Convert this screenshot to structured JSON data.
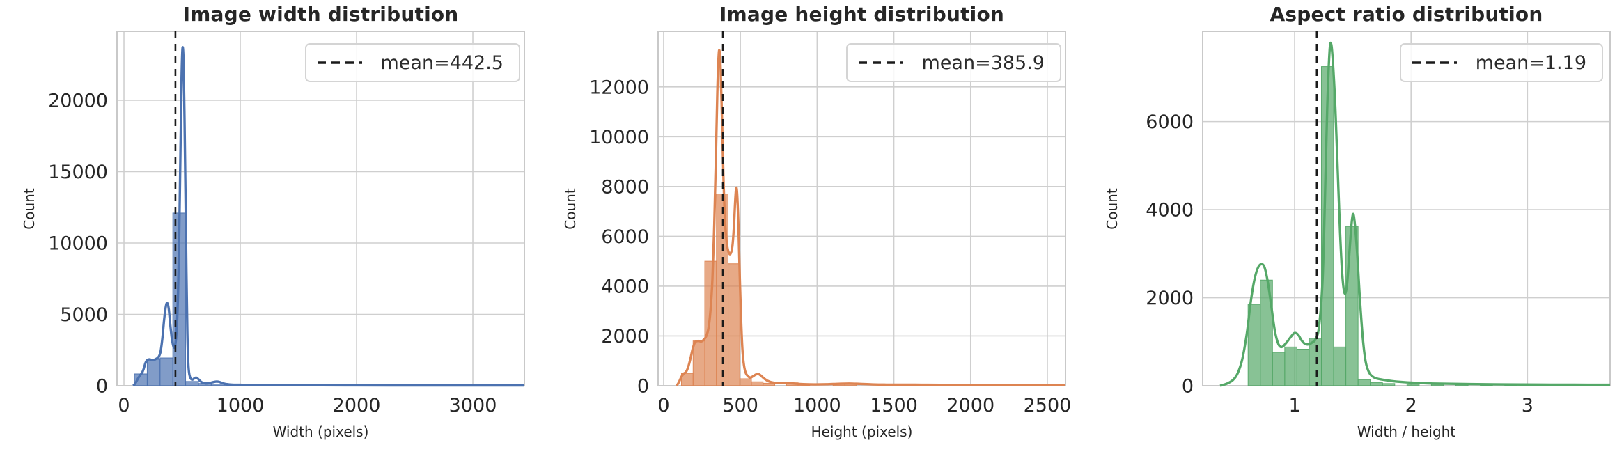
{
  "figure": {
    "background": "#ffffff",
    "grid_color": "#cfcfcf",
    "spine_color": "#c9c9c9",
    "mean_line_color": "#1a1a1a",
    "text_color": "#262626"
  },
  "chart_data": [
    {
      "type": "histogram+kde",
      "title": "Image width distribution",
      "xlabel": "Width (pixels)",
      "ylabel": "Count",
      "legend_label": "mean=442.5",
      "legend_position": "upper right",
      "mean": 442.5,
      "color": "#4C72B0",
      "grid": true,
      "xlim": [
        -60,
        3443
      ],
      "ylim": [
        0,
        24830
      ],
      "x_ticks": [
        0,
        1000,
        2000,
        3000
      ],
      "y_ticks": [
        0,
        5000,
        10000,
        15000,
        20000
      ],
      "bars": [
        [
          90,
          200,
          830
        ],
        [
          200,
          310,
          1850
        ],
        [
          310,
          420,
          1950
        ],
        [
          420,
          530,
          12100
        ],
        [
          530,
          640,
          300
        ],
        [
          640,
          750,
          160
        ],
        [
          750,
          860,
          120
        ],
        [
          860,
          970,
          80
        ],
        [
          970,
          1080,
          90
        ],
        [
          1080,
          1190,
          60
        ],
        [
          1300,
          1410,
          50
        ],
        [
          1520,
          1630,
          40
        ],
        [
          1740,
          1850,
          35
        ],
        [
          1960,
          2070,
          30
        ],
        [
          2180,
          2290,
          28
        ],
        [
          2400,
          2510,
          26
        ],
        [
          2620,
          2730,
          25
        ],
        [
          2840,
          2950,
          24
        ],
        [
          3060,
          3170,
          24
        ],
        [
          3280,
          3390,
          26
        ]
      ],
      "kde": [
        [
          80,
          0
        ],
        [
          100,
          200
        ],
        [
          120,
          500
        ],
        [
          140,
          750
        ],
        [
          155,
          900
        ],
        [
          170,
          1200
        ],
        [
          185,
          1600
        ],
        [
          200,
          1800
        ],
        [
          220,
          1850
        ],
        [
          240,
          1800
        ],
        [
          260,
          1820
        ],
        [
          280,
          1900
        ],
        [
          300,
          2050
        ],
        [
          315,
          2400
        ],
        [
          330,
          3300
        ],
        [
          345,
          4600
        ],
        [
          360,
          5550
        ],
        [
          372,
          5800
        ],
        [
          385,
          5400
        ],
        [
          398,
          4300
        ],
        [
          412,
          3300
        ],
        [
          428,
          2700
        ],
        [
          442,
          2900
        ],
        [
          455,
          4200
        ],
        [
          465,
          6500
        ],
        [
          475,
          10500
        ],
        [
          485,
          16000
        ],
        [
          494,
          21000
        ],
        [
          501,
          23300
        ],
        [
          507,
          23650
        ],
        [
          513,
          22500
        ],
        [
          521,
          18500
        ],
        [
          529,
          13500
        ],
        [
          537,
          8000
        ],
        [
          545,
          3800
        ],
        [
          553,
          1600
        ],
        [
          562,
          800
        ],
        [
          575,
          500
        ],
        [
          590,
          430
        ],
        [
          605,
          520
        ],
        [
          620,
          570
        ],
        [
          635,
          500
        ],
        [
          655,
          330
        ],
        [
          675,
          220
        ],
        [
          700,
          160
        ],
        [
          730,
          180
        ],
        [
          760,
          240
        ],
        [
          790,
          290
        ],
        [
          815,
          280
        ],
        [
          840,
          210
        ],
        [
          870,
          130
        ],
        [
          910,
          90
        ],
        [
          960,
          70
        ],
        [
          1020,
          65
        ],
        [
          1100,
          55
        ],
        [
          1250,
          45
        ],
        [
          1450,
          38
        ],
        [
          1700,
          32
        ],
        [
          2000,
          28
        ],
        [
          2300,
          25
        ],
        [
          2600,
          23
        ],
        [
          2900,
          22
        ],
        [
          3200,
          22
        ],
        [
          3443,
          20
        ]
      ]
    },
    {
      "type": "histogram+kde",
      "title": "Image height distribution",
      "xlabel": "Height (pixels)",
      "ylabel": "Count",
      "legend_label": "mean=385.9",
      "legend_position": "upper right",
      "mean": 385.9,
      "color": "#DD8452",
      "grid": true,
      "xlim": [
        -36,
        2618
      ],
      "ylim": [
        0,
        14230
      ],
      "x_ticks": [
        0,
        500,
        1000,
        1500,
        2000,
        2500
      ],
      "y_ticks": [
        0,
        2000,
        4000,
        6000,
        8000,
        10000,
        12000
      ],
      "bars": [
        [
          116,
          192,
          500
        ],
        [
          192,
          268,
          1800
        ],
        [
          268,
          344,
          5000
        ],
        [
          344,
          420,
          7700
        ],
        [
          420,
          496,
          4900
        ],
        [
          496,
          572,
          280
        ],
        [
          572,
          648,
          160
        ],
        [
          648,
          724,
          100
        ],
        [
          800,
          876,
          120
        ],
        [
          876,
          952,
          70
        ],
        [
          1104,
          1180,
          80
        ],
        [
          1180,
          1256,
          90
        ],
        [
          1408,
          1484,
          50
        ],
        [
          1560,
          1636,
          60
        ],
        [
          1864,
          1940,
          40
        ],
        [
          2168,
          2244,
          30
        ],
        [
          2472,
          2548,
          25
        ]
      ],
      "kde": [
        [
          85,
          0
        ],
        [
          100,
          150
        ],
        [
          115,
          350
        ],
        [
          130,
          480
        ],
        [
          145,
          550
        ],
        [
          160,
          750
        ],
        [
          175,
          1100
        ],
        [
          190,
          1500
        ],
        [
          205,
          1750
        ],
        [
          225,
          1800
        ],
        [
          245,
          1780
        ],
        [
          262,
          1850
        ],
        [
          278,
          2000
        ],
        [
          292,
          2300
        ],
        [
          305,
          3000
        ],
        [
          318,
          4300
        ],
        [
          330,
          6500
        ],
        [
          340,
          9000
        ],
        [
          350,
          11800
        ],
        [
          358,
          13200
        ],
        [
          364,
          13450
        ],
        [
          371,
          12800
        ],
        [
          380,
          10800
        ],
        [
          390,
          8300
        ],
        [
          400,
          6600
        ],
        [
          412,
          5700
        ],
        [
          424,
          5350
        ],
        [
          436,
          5300
        ],
        [
          448,
          5600
        ],
        [
          458,
          6400
        ],
        [
          466,
          7400
        ],
        [
          473,
          7950
        ],
        [
          480,
          7600
        ],
        [
          488,
          6300
        ],
        [
          496,
          4400
        ],
        [
          505,
          2600
        ],
        [
          514,
          1400
        ],
        [
          524,
          800
        ],
        [
          536,
          500
        ],
        [
          550,
          380
        ],
        [
          565,
          330
        ],
        [
          582,
          380
        ],
        [
          600,
          450
        ],
        [
          618,
          470
        ],
        [
          635,
          400
        ],
        [
          655,
          290
        ],
        [
          680,
          190
        ],
        [
          710,
          130
        ],
        [
          745,
          110
        ],
        [
          780,
          120
        ],
        [
          815,
          110
        ],
        [
          855,
          85
        ],
        [
          910,
          65
        ],
        [
          980,
          55
        ],
        [
          1060,
          60
        ],
        [
          1140,
          80
        ],
        [
          1210,
          90
        ],
        [
          1280,
          75
        ],
        [
          1360,
          55
        ],
        [
          1450,
          45
        ],
        [
          1560,
          45
        ],
        [
          1680,
          40
        ],
        [
          1800,
          35
        ],
        [
          1950,
          30
        ],
        [
          2100,
          27
        ],
        [
          2300,
          24
        ],
        [
          2500,
          22
        ],
        [
          2618,
          21
        ]
      ]
    },
    {
      "type": "histogram+kde",
      "title": "Aspect ratio distribution",
      "xlabel": "Width / height",
      "ylabel": "Count",
      "legend_label": "mean=1.19",
      "legend_position": "upper right",
      "mean": 1.19,
      "color": "#55A868",
      "grid": true,
      "xlim": [
        0.21,
        3.71
      ],
      "ylim": [
        0,
        8050
      ],
      "x_ticks": [
        1,
        2,
        3
      ],
      "y_ticks": [
        0,
        2000,
        4000,
        6000
      ],
      "bars": [
        [
          0.6,
          0.705,
          1850
        ],
        [
          0.705,
          0.81,
          2400
        ],
        [
          0.81,
          0.915,
          760
        ],
        [
          0.915,
          1.02,
          880
        ],
        [
          1.02,
          1.125,
          830
        ],
        [
          1.125,
          1.23,
          1080
        ],
        [
          1.23,
          1.335,
          7250
        ],
        [
          1.335,
          1.44,
          880
        ],
        [
          1.44,
          1.545,
          3620
        ],
        [
          1.545,
          1.65,
          140
        ],
        [
          1.65,
          1.755,
          70
        ],
        [
          1.755,
          1.86,
          50
        ],
        [
          1.965,
          2.07,
          35
        ],
        [
          2.175,
          2.28,
          28
        ],
        [
          2.385,
          2.49,
          25
        ],
        [
          2.595,
          2.7,
          22
        ],
        [
          2.805,
          2.91,
          20
        ],
        [
          3.015,
          3.12,
          20
        ],
        [
          3.225,
          3.33,
          20
        ],
        [
          3.435,
          3.54,
          20
        ],
        [
          3.54,
          3.645,
          22
        ]
      ],
      "kde": [
        [
          0.36,
          0
        ],
        [
          0.42,
          50
        ],
        [
          0.47,
          130
        ],
        [
          0.51,
          280
        ],
        [
          0.55,
          600
        ],
        [
          0.59,
          1200
        ],
        [
          0.62,
          1850
        ],
        [
          0.65,
          2350
        ],
        [
          0.68,
          2650
        ],
        [
          0.71,
          2760
        ],
        [
          0.74,
          2700
        ],
        [
          0.77,
          2350
        ],
        [
          0.8,
          1800
        ],
        [
          0.83,
          1250
        ],
        [
          0.86,
          950
        ],
        [
          0.89,
          880
        ],
        [
          0.93,
          980
        ],
        [
          0.97,
          1120
        ],
        [
          1.0,
          1200
        ],
        [
          1.03,
          1160
        ],
        [
          1.06,
          1030
        ],
        [
          1.09,
          950
        ],
        [
          1.12,
          940
        ],
        [
          1.15,
          980
        ],
        [
          1.18,
          1060
        ],
        [
          1.21,
          1350
        ],
        [
          1.24,
          2400
        ],
        [
          1.26,
          4200
        ],
        [
          1.28,
          6300
        ],
        [
          1.3,
          7600
        ],
        [
          1.315,
          7750
        ],
        [
          1.33,
          7300
        ],
        [
          1.35,
          6300
        ],
        [
          1.37,
          4900
        ],
        [
          1.39,
          3500
        ],
        [
          1.41,
          2500
        ],
        [
          1.43,
          2100
        ],
        [
          1.45,
          2300
        ],
        [
          1.47,
          3000
        ],
        [
          1.49,
          3700
        ],
        [
          1.505,
          3900
        ],
        [
          1.52,
          3600
        ],
        [
          1.54,
          2900
        ],
        [
          1.56,
          2000
        ],
        [
          1.585,
          1100
        ],
        [
          1.61,
          550
        ],
        [
          1.64,
          300
        ],
        [
          1.68,
          190
        ],
        [
          1.73,
          150
        ],
        [
          1.8,
          120
        ],
        [
          1.9,
          90
        ],
        [
          2.05,
          65
        ],
        [
          2.25,
          48
        ],
        [
          2.5,
          38
        ],
        [
          2.8,
          30
        ],
        [
          3.1,
          26
        ],
        [
          3.4,
          24
        ],
        [
          3.71,
          22
        ]
      ]
    }
  ]
}
